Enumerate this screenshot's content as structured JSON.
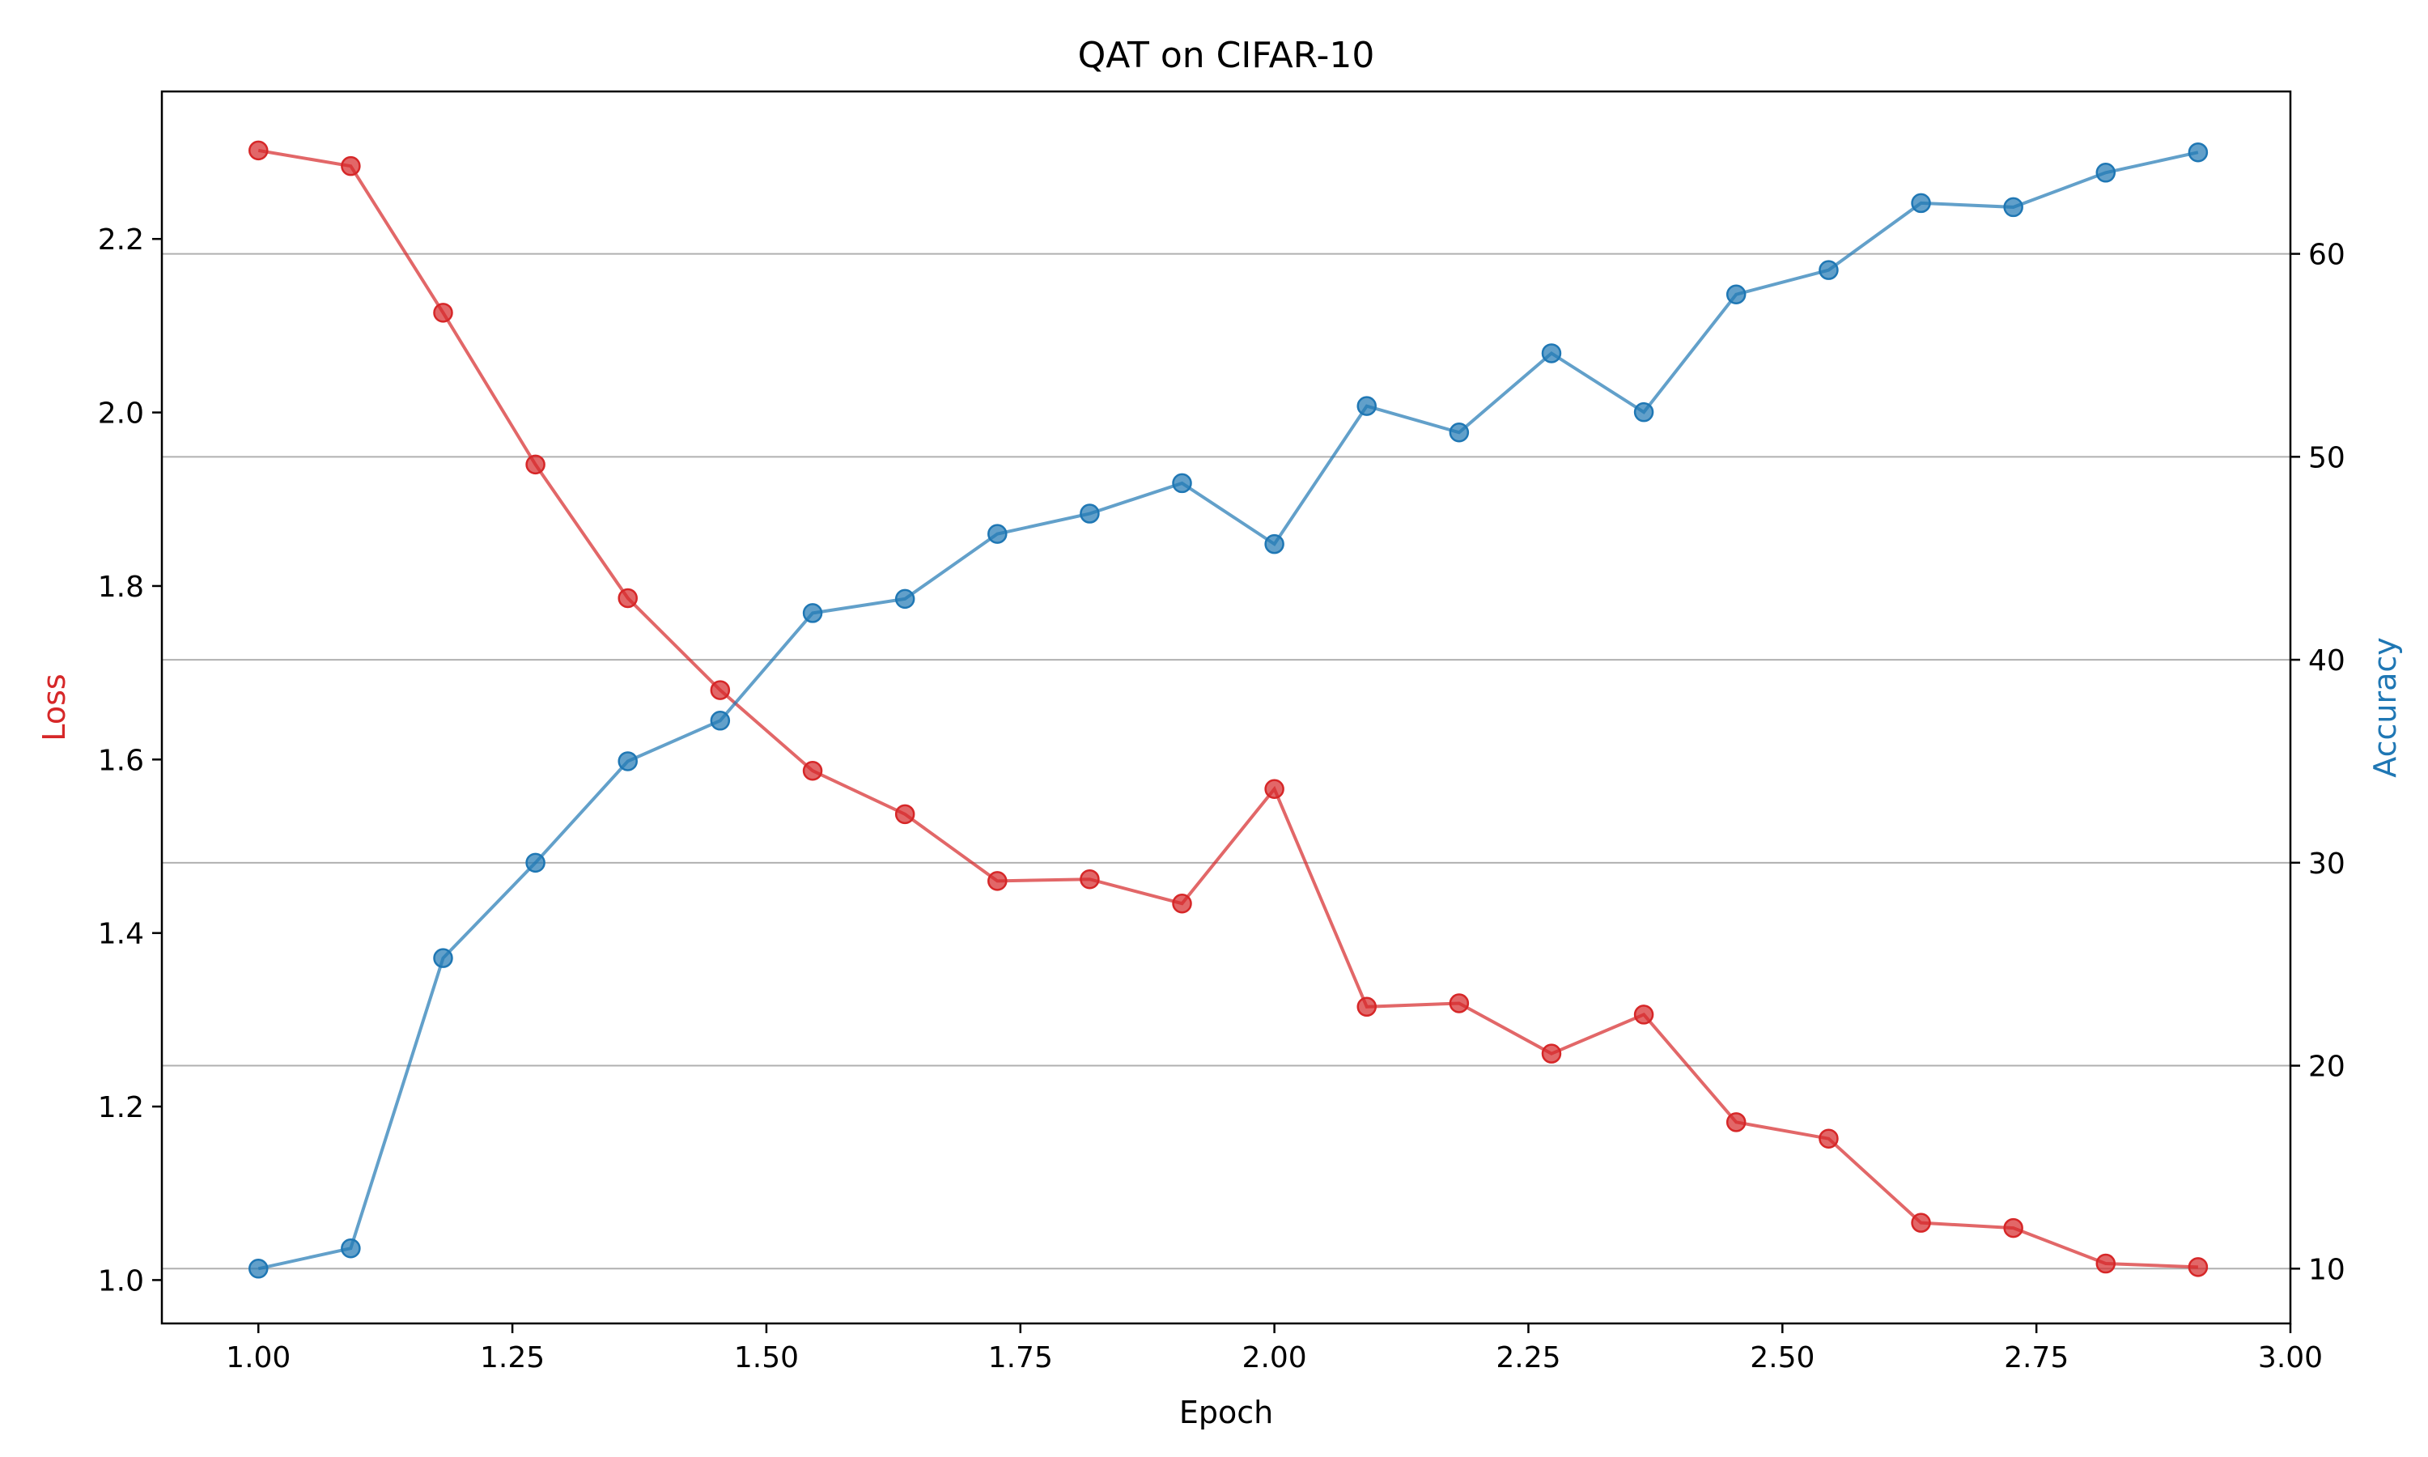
{
  "chart_data": {
    "type": "line",
    "title": "QAT on CIFAR-10",
    "xlabel": "Epoch",
    "ylabel_left": "Loss",
    "ylabel_right": "Accuracy",
    "xlim": [
      0.905,
      3.0
    ],
    "ylim_left": [
      0.95,
      2.37
    ],
    "ylim_right": [
      7.3,
      68.0
    ],
    "x_ticks": [
      1.0,
      1.25,
      1.5,
      1.75,
      2.0,
      2.25,
      2.5,
      2.75,
      3.0
    ],
    "x_tick_labels": [
      "1.00",
      "1.25",
      "1.50",
      "1.75",
      "2.00",
      "2.25",
      "2.50",
      "2.75",
      "3.00"
    ],
    "left_ticks": [
      1.0,
      1.2,
      1.4,
      1.6,
      1.8,
      2.0,
      2.2
    ],
    "left_tick_labels": [
      "1.0",
      "1.2",
      "1.4",
      "1.6",
      "1.8",
      "2.0",
      "2.2"
    ],
    "right_ticks": [
      10,
      20,
      30,
      40,
      50,
      60
    ],
    "right_tick_labels": [
      "10",
      "20",
      "30",
      "40",
      "50",
      "60"
    ],
    "grid": "horizontal (right axis)",
    "colors": {
      "loss": "#d62728",
      "accuracy": "#1f77b4",
      "grid": "#b0b0b0"
    },
    "x": [
      1.0,
      1.0909,
      1.1818,
      1.2727,
      1.3636,
      1.4545,
      1.5455,
      1.6364,
      1.7273,
      1.8182,
      1.9091,
      2.0,
      2.0909,
      2.1818,
      2.2727,
      2.3636,
      2.4545,
      2.5455,
      2.6364,
      2.7273,
      2.8182,
      2.9091
    ],
    "series": [
      {
        "name": "Loss",
        "axis": "left",
        "values": [
          2.302,
          2.284,
          2.115,
          1.94,
          1.786,
          1.68,
          1.587,
          1.537,
          1.46,
          1.462,
          1.434,
          1.566,
          1.315,
          1.319,
          1.261,
          1.306,
          1.182,
          1.163,
          1.066,
          1.06,
          1.019,
          1.015
        ]
      },
      {
        "name": "Accuracy",
        "axis": "right",
        "values": [
          10.0,
          11.0,
          25.3,
          30.0,
          35.0,
          37.0,
          42.3,
          43.0,
          46.2,
          47.2,
          48.7,
          45.7,
          52.5,
          51.2,
          55.1,
          52.2,
          58.0,
          59.2,
          62.5,
          62.3,
          64.0,
          65.0
        ]
      }
    ]
  }
}
